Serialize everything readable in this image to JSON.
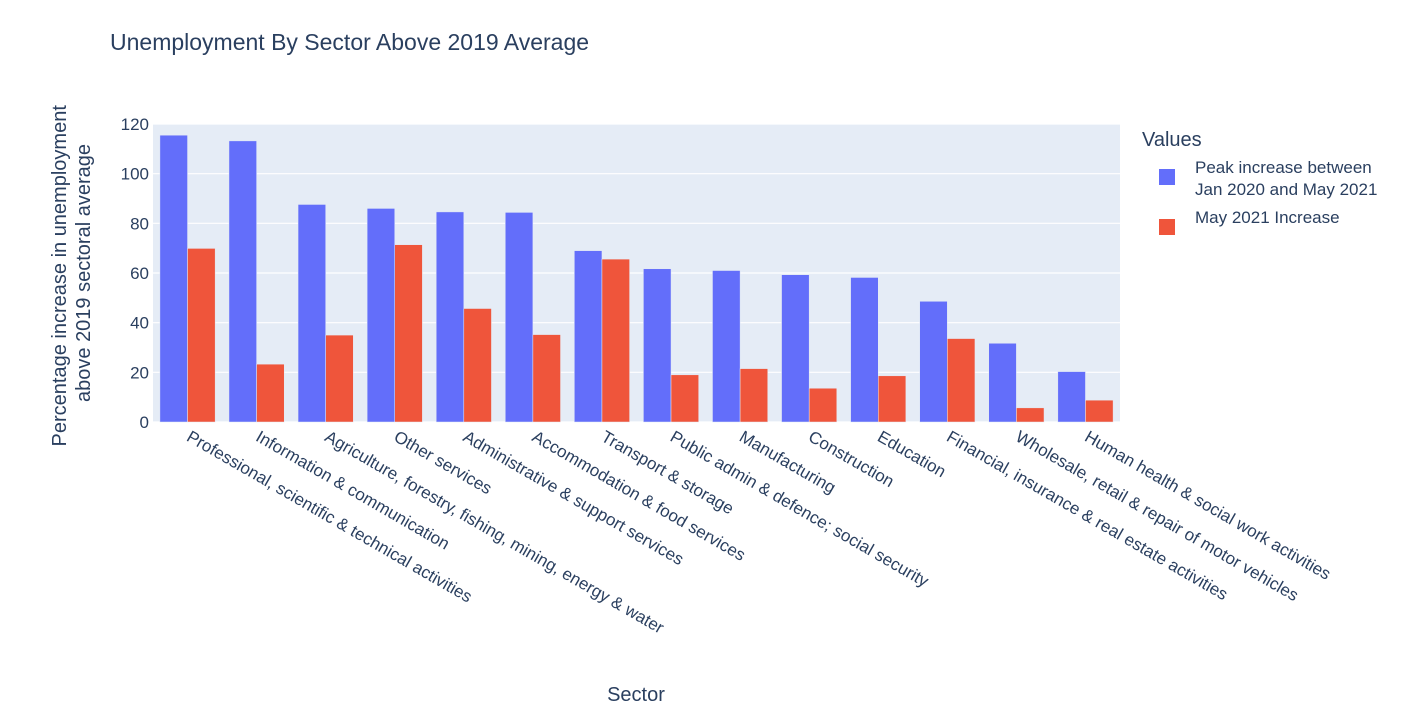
{
  "chart_data": {
    "type": "bar",
    "title": "Unemployment By Sector Above 2019 Average",
    "xlabel": "Sector",
    "ylabel_lines": [
      "Percentage increase in unemployment",
      "above 2019 sectoral average"
    ],
    "ylim": [
      0,
      120
    ],
    "yticks": [
      0,
      20,
      40,
      60,
      80,
      100,
      120
    ],
    "grid": true,
    "legend_title": "Values",
    "legend_position": "right",
    "categories": [
      "Professional, scientific & technical activities",
      "Information & communication",
      "Agriculture, forestry, fishing, mining, energy & water",
      "Other services",
      "Administrative & support services",
      "Accommodation & food services",
      "Transport & storage",
      "Public admin & defence; social security",
      "Manufacturing",
      "Construction",
      "Education",
      "Financial,  insurance & real estate activities",
      "Wholesale, retail & repair of motor vehicles",
      "Human health & social work activities"
    ],
    "series": [
      {
        "name": "Peak increase between Jan 2020 and May 2021",
        "legend_lines": [
          "Peak increase between",
          "Jan 2020 and May 2021"
        ],
        "color": "#636efa",
        "values": [
          115.5,
          113.2,
          87.6,
          86.0,
          84.6,
          84.4,
          69.0,
          61.7,
          61.0,
          59.3,
          58.2,
          48.6,
          31.7,
          20.3
        ]
      },
      {
        "name": "May 2021 Increase",
        "legend_lines": [
          "May 2021 Increase"
        ],
        "color": "#ef553b",
        "values": [
          69.9,
          23.3,
          35.0,
          71.4,
          45.7,
          35.2,
          65.6,
          19.0,
          21.5,
          13.6,
          18.6,
          33.6,
          5.7,
          8.8
        ]
      }
    ],
    "plot_bgcolor": "#e5ecf6",
    "grid_color": "#ffffff",
    "text_color": "#2a3f5f"
  }
}
